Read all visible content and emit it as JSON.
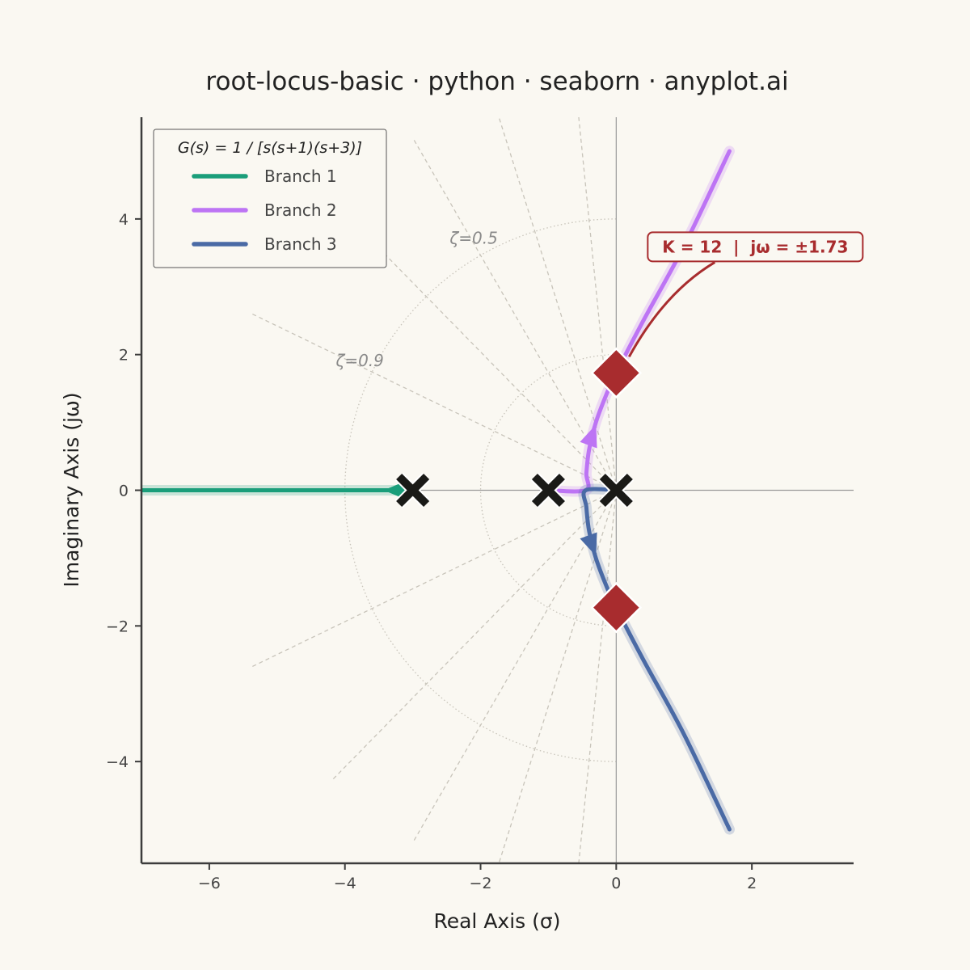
{
  "chart_data": {
    "type": "line",
    "title": "root-locus-basic · python · seaborn · anyplot.ai",
    "xlabel": "Real Axis (σ)",
    "ylabel": "Imaginary Axis (jω)",
    "xlim": [
      -7,
      3.5
    ],
    "ylim": [
      -5.5,
      5.5
    ],
    "xticks": [
      -6,
      -4,
      -2,
      0,
      2
    ],
    "yticks": [
      -4,
      -2,
      0,
      2,
      4
    ],
    "xtick_labels": [
      "−6",
      "−4",
      "−2",
      "0",
      "2"
    ],
    "ytick_labels": [
      "−4",
      "−2",
      "0",
      "2",
      "4"
    ],
    "grid": false,
    "legend": {
      "placement": "top-left",
      "title": "G(s) = 1 / [s(s+1)(s+3)]"
    },
    "series": [
      {
        "name": "Branch 1",
        "color": "#1A9E7A",
        "points": [
          [
            -3,
            0
          ],
          [
            -3.5,
            0
          ],
          [
            -4,
            0
          ],
          [
            -5,
            0
          ],
          [
            -6,
            0
          ],
          [
            -7,
            0
          ]
        ]
      },
      {
        "name": "Branch 2",
        "color": "#BD74F4",
        "points": [
          [
            -1,
            0
          ],
          [
            -0.45,
            0
          ],
          [
            -0.44,
            0.25
          ],
          [
            -0.4,
            0.6
          ],
          [
            -0.3,
            1.0
          ],
          [
            -0.15,
            1.4
          ],
          [
            0,
            1.73
          ],
          [
            0.4,
            2.5
          ],
          [
            1.0,
            3.6
          ],
          [
            1.67,
            5.0
          ]
        ]
      },
      {
        "name": "Branch 3",
        "color": "#4A6AA5",
        "points": [
          [
            0,
            0
          ],
          [
            -0.45,
            0
          ],
          [
            -0.44,
            -0.25
          ],
          [
            -0.4,
            -0.6
          ],
          [
            -0.3,
            -1.0
          ],
          [
            -0.15,
            -1.4
          ],
          [
            0,
            -1.73
          ],
          [
            0.4,
            -2.5
          ],
          [
            1.0,
            -3.6
          ],
          [
            1.67,
            -5.0
          ]
        ]
      }
    ],
    "poles": [
      [
        0,
        0
      ],
      [
        -1,
        0
      ],
      [
        -3,
        0
      ]
    ],
    "crossings": [
      [
        0,
        1.73
      ],
      [
        0,
        -1.73
      ]
    ],
    "damping_ratios": [
      0.1,
      0.3,
      0.5,
      0.7,
      0.9
    ],
    "damping_labels": [
      {
        "text": "ζ=0.5",
        "zeta": 0.5
      },
      {
        "text": "ζ=0.9",
        "zeta": 0.9
      }
    ],
    "wn_circles": [
      2,
      4
    ],
    "annotation": {
      "text": "K = 12  |  jω = ±1.73",
      "point": [
        0,
        1.73
      ],
      "text_at": [
        2.05,
        3.6
      ]
    },
    "colors": {
      "background": "#FAF8F2",
      "axes": "#3C3C3C",
      "pole": "#1A1A17",
      "crossing": "#A82C2E",
      "guide": "#C8C4BA"
    }
  }
}
